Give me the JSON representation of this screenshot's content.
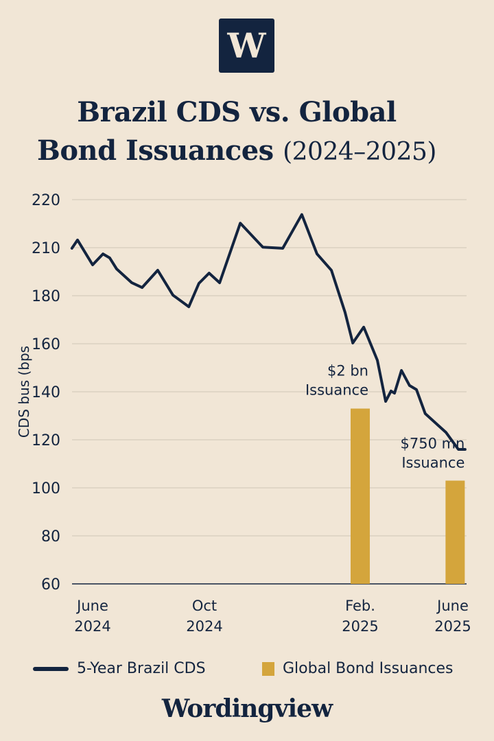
{
  "logo": {
    "letter": "W"
  },
  "title": {
    "line1": "Brazil CDS vs. Global",
    "line2_bold": "Bond Issuances",
    "line2_regular": "(2024–2025)"
  },
  "brand": "Wordingview",
  "colors": {
    "background": "#f1e6d6",
    "line": "#13243f",
    "bar": "#d4a53c",
    "grid": "#cfc5b6"
  },
  "chart_data": {
    "type": "line+bar",
    "title": "Brazil CDS vs. Global Bond Issuances (2024–2025)",
    "ylabel": "CDS bus (bps",
    "xlabel": "",
    "y_ticks": [
      "220",
      "210",
      "180",
      "160",
      "140",
      "120",
      "100",
      "80",
      "60"
    ],
    "x_unit": "months since June 2024",
    "x_ticks": [
      {
        "value": 0,
        "line1": "June",
        "line2": "2024"
      },
      {
        "value": 4,
        "line1": "Oct",
        "line2": "2024"
      },
      {
        "value": 8,
        "line1": "Feb.",
        "line2": "2025"
      },
      {
        "value": 12,
        "line1": "June",
        "line2": "2025"
      }
    ],
    "grid": true,
    "legend_position": "bottom",
    "series": [
      {
        "name": "5-Year Brazil CDS",
        "type": "line",
        "x": [
          -0.74,
          -0.54,
          0,
          0.37,
          0.61,
          0.86,
          1.4,
          1.77,
          2.33,
          2.87,
          3.44,
          3.8,
          4.12,
          4.39,
          4.92,
          5.5,
          6.01,
          6.5,
          6.89,
          7.26,
          7.61,
          7.81,
          8.15,
          8.74,
          9.1,
          9.33,
          9.48,
          9.78,
          10.13,
          10.43,
          10.81,
          11.7,
          12.24,
          12.53
        ],
        "y": [
          209.6,
          211.6,
          199.3,
          206.1,
          203.6,
          196.7,
          188.1,
          185.1,
          195.9,
          180.4,
          175.4,
          187.7,
          194.1,
          188.1,
          215.1,
          210.1,
          209.6,
          216.9,
          206.1,
          195.9,
          173.1,
          160.3,
          166.9,
          153.1,
          136,
          140.3,
          139.4,
          148.9,
          142.6,
          140.9,
          130.9,
          123.1,
          116,
          116
        ]
      },
      {
        "name": "Global Bond Issuances",
        "type": "bar",
        "x": [
          8,
          12.1
        ],
        "y": [
          133,
          103
        ],
        "labels": [
          {
            "line1": "$2 bn",
            "line2": "Issuance"
          },
          {
            "line1": "$750 mn",
            "line2": "Issuance"
          }
        ]
      }
    ]
  }
}
